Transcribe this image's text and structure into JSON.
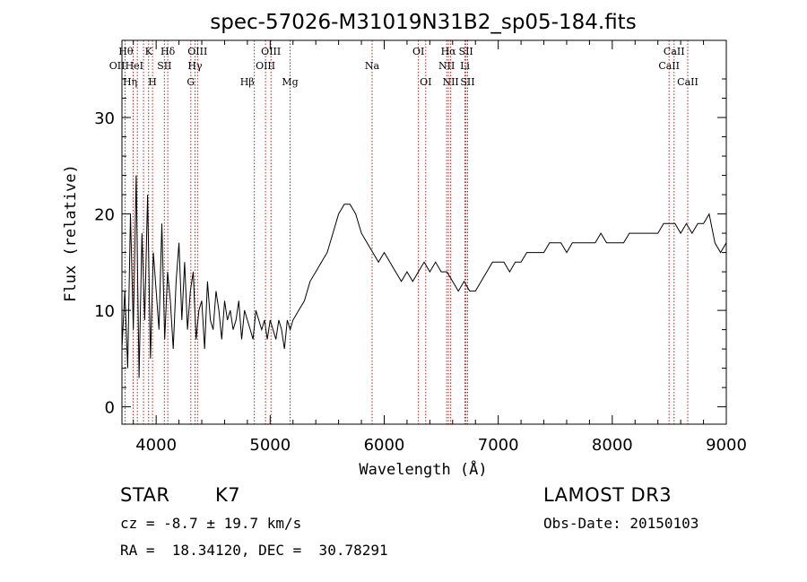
{
  "chart_data": {
    "type": "line",
    "title": "spec-57026-M31019N31B2_sp05-184.fits",
    "xlabel": "Wavelength (Å)",
    "ylabel": "Flux (relative)",
    "xlim": [
      3700,
      9000
    ],
    "ylim": [
      -1.8,
      38
    ],
    "xticks": [
      4000,
      5000,
      6000,
      7000,
      8000,
      9000
    ],
    "yticks": [
      0,
      10,
      20,
      30
    ],
    "grid": false,
    "series": [
      {
        "name": "flux",
        "x": [
          3700,
          3725,
          3750,
          3775,
          3800,
          3825,
          3850,
          3875,
          3900,
          3925,
          3950,
          3975,
          4000,
          4025,
          4050,
          4075,
          4100,
          4125,
          4150,
          4175,
          4200,
          4225,
          4250,
          4275,
          4300,
          4325,
          4350,
          4375,
          4400,
          4425,
          4450,
          4475,
          4500,
          4525,
          4550,
          4575,
          4600,
          4625,
          4650,
          4675,
          4700,
          4725,
          4750,
          4775,
          4800,
          4825,
          4850,
          4875,
          4900,
          4925,
          4950,
          4975,
          5000,
          5025,
          5050,
          5075,
          5100,
          5125,
          5150,
          5175,
          5200,
          5250,
          5300,
          5350,
          5400,
          5450,
          5500,
          5550,
          5600,
          5650,
          5700,
          5750,
          5800,
          5850,
          5900,
          5950,
          6000,
          6050,
          6100,
          6150,
          6200,
          6250,
          6300,
          6350,
          6400,
          6450,
          6500,
          6550,
          6600,
          6650,
          6700,
          6750,
          6800,
          6850,
          6900,
          6950,
          7000,
          7050,
          7100,
          7150,
          7200,
          7250,
          7300,
          7350,
          7400,
          7450,
          7500,
          7550,
          7600,
          7650,
          7700,
          7750,
          7800,
          7850,
          7900,
          7950,
          8000,
          8050,
          8100,
          8150,
          8200,
          8250,
          8300,
          8350,
          8400,
          8450,
          8500,
          8550,
          8600,
          8650,
          8700,
          8750,
          8800,
          8850,
          8900,
          8950,
          9000
        ],
        "y": [
          6,
          12,
          4,
          20,
          8,
          24,
          3,
          18,
          9,
          22,
          5,
          16,
          12,
          8,
          19,
          7,
          14,
          11,
          6,
          13,
          17,
          9,
          15,
          8,
          12,
          14,
          7,
          10,
          11,
          6,
          13,
          9,
          8,
          12,
          10,
          7,
          11,
          9,
          10,
          8,
          9,
          11,
          7,
          10,
          9,
          8,
          7,
          10,
          9,
          8,
          9,
          7,
          9,
          8,
          7,
          9,
          8,
          6,
          9,
          8,
          9,
          10,
          11,
          13,
          14,
          15,
          16,
          18,
          20,
          21,
          21,
          20,
          18,
          17,
          16,
          15,
          16,
          15,
          14,
          13,
          14,
          13,
          14,
          15,
          14,
          15,
          14,
          14,
          13,
          12,
          13,
          12,
          12,
          13,
          14,
          15,
          15,
          15,
          14,
          15,
          15,
          16,
          16,
          16,
          16,
          17,
          17,
          17,
          16,
          17,
          17,
          17,
          17,
          17,
          18,
          17,
          17,
          17,
          17,
          18,
          18,
          18,
          18,
          18,
          18,
          19,
          19,
          19,
          18,
          19,
          18,
          19,
          19,
          20,
          17,
          16,
          17
        ]
      }
    ],
    "spectral_lines": [
      {
        "label": "OII",
        "x": 3727,
        "row": 2,
        "align": "right"
      },
      {
        "label": "Hθ",
        "x": 3798,
        "row": 1,
        "align": "right"
      },
      {
        "label": "Hη",
        "x": 3835,
        "row": 3,
        "align": "right"
      },
      {
        "label": "HeI",
        "x": 3889,
        "row": 2,
        "align": "right"
      },
      {
        "label": "K",
        "x": 3934,
        "row": 1,
        "align": "center"
      },
      {
        "label": "H",
        "x": 3968,
        "row": 3,
        "align": "center"
      },
      {
        "label": "Hδ",
        "x": 4102,
        "row": 1,
        "align": "center"
      },
      {
        "label": "SII",
        "x": 4072,
        "row": 2,
        "align": "center"
      },
      {
        "label": "G",
        "x": 4304,
        "row": 3,
        "align": "center"
      },
      {
        "label": "Hγ",
        "x": 4341,
        "row": 2,
        "align": "center"
      },
      {
        "label": "OIII",
        "x": 4363,
        "row": 1,
        "align": "center"
      },
      {
        "label": "Hβ",
        "x": 4861,
        "row": 3,
        "align": "right"
      },
      {
        "label": "OIII",
        "x": 4959,
        "row": 2,
        "align": "center"
      },
      {
        "label": "OIII",
        "x": 5007,
        "row": 1,
        "align": "center"
      },
      {
        "label": "Mg",
        "x": 5175,
        "row": 3,
        "align": "center"
      },
      {
        "label": "Na",
        "x": 5894,
        "row": 2,
        "align": "center"
      },
      {
        "label": "OI",
        "x": 6300,
        "row": 1,
        "align": "center"
      },
      {
        "label": "OI",
        "x": 6364,
        "row": 3,
        "align": "center"
      },
      {
        "label": "NII",
        "x": 6548,
        "row": 2,
        "align": "center"
      },
      {
        "label": "Hα",
        "x": 6563,
        "row": 1,
        "align": "center"
      },
      {
        "label": "NII",
        "x": 6583,
        "row": 3,
        "align": "center"
      },
      {
        "label": "Li",
        "x": 6708,
        "row": 2,
        "align": "center"
      },
      {
        "label": "SII",
        "x": 6717,
        "row": 1,
        "align": "center"
      },
      {
        "label": "SII",
        "x": 6731,
        "row": 3,
        "align": "center"
      },
      {
        "label": "CaII",
        "x": 8498,
        "row": 2,
        "align": "center"
      },
      {
        "label": "CaII",
        "x": 8542,
        "row": 1,
        "align": "center"
      },
      {
        "label": "CaII",
        "x": 8662,
        "row": 3,
        "align": "center"
      }
    ]
  },
  "footer": {
    "object_type": "STAR",
    "subclass": "K7",
    "redshift_line": "cz = -8.7 ± 19.7 km/s",
    "coords_line": "RA =  18.34120, DEC =  30.78291",
    "survey": "LAMOST DR3",
    "obs_date": "Obs-Date: 20150103"
  },
  "colors": {
    "line": "#000000",
    "marker": "#b22222",
    "background": "#ffffff"
  }
}
